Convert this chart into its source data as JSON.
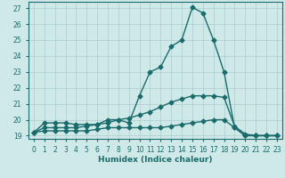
{
  "xlabel": "Humidex (Indice chaleur)",
  "background_color": "#cfe8e8",
  "line_color": "#1a6b6b",
  "grid_color": "#aacccc",
  "xlim": [
    -0.5,
    23.5
  ],
  "ylim": [
    18.8,
    27.4
  ],
  "yticks": [
    19,
    20,
    21,
    22,
    23,
    24,
    25,
    26,
    27
  ],
  "xticks": [
    0,
    1,
    2,
    3,
    4,
    5,
    6,
    7,
    8,
    9,
    10,
    11,
    12,
    13,
    14,
    15,
    16,
    17,
    18,
    19,
    20,
    21,
    22,
    23
  ],
  "series": [
    {
      "x": [
        0,
        1,
        2,
        3,
        4,
        5,
        6,
        7,
        8,
        9,
        10,
        11,
        12,
        13,
        14,
        15,
        16,
        17,
        18,
        19,
        20,
        21,
        22,
        23
      ],
      "y": [
        19.2,
        19.8,
        19.8,
        19.8,
        19.7,
        19.7,
        19.7,
        20.0,
        20.0,
        19.8,
        21.5,
        23.0,
        23.3,
        24.6,
        25.0,
        27.05,
        26.7,
        25.0,
        23.0,
        19.5,
        19.0,
        19.0,
        19.0,
        19.0
      ]
    },
    {
      "x": [
        0,
        1,
        2,
        3,
        4,
        5,
        6,
        7,
        8,
        9,
        10,
        11,
        12,
        13,
        14,
        15,
        16,
        17,
        18,
        19,
        20,
        21,
        22,
        23
      ],
      "y": [
        19.2,
        19.5,
        19.5,
        19.5,
        19.5,
        19.6,
        19.7,
        19.8,
        20.0,
        20.1,
        20.3,
        20.5,
        20.8,
        21.1,
        21.3,
        21.5,
        21.5,
        21.5,
        21.4,
        19.6,
        19.1,
        19.0,
        19.0,
        19.0
      ]
    },
    {
      "x": [
        0,
        1,
        2,
        3,
        4,
        5,
        6,
        7,
        8,
        9,
        10,
        11,
        12,
        13,
        14,
        15,
        16,
        17,
        18,
        19,
        20,
        21,
        22,
        23
      ],
      "y": [
        19.2,
        19.3,
        19.3,
        19.3,
        19.3,
        19.3,
        19.4,
        19.5,
        19.5,
        19.5,
        19.5,
        19.5,
        19.5,
        19.6,
        19.7,
        19.8,
        19.9,
        20.0,
        20.0,
        19.5,
        19.0,
        19.0,
        19.0,
        19.0
      ]
    }
  ],
  "markersize": 2.5,
  "linewidth": 1.0
}
